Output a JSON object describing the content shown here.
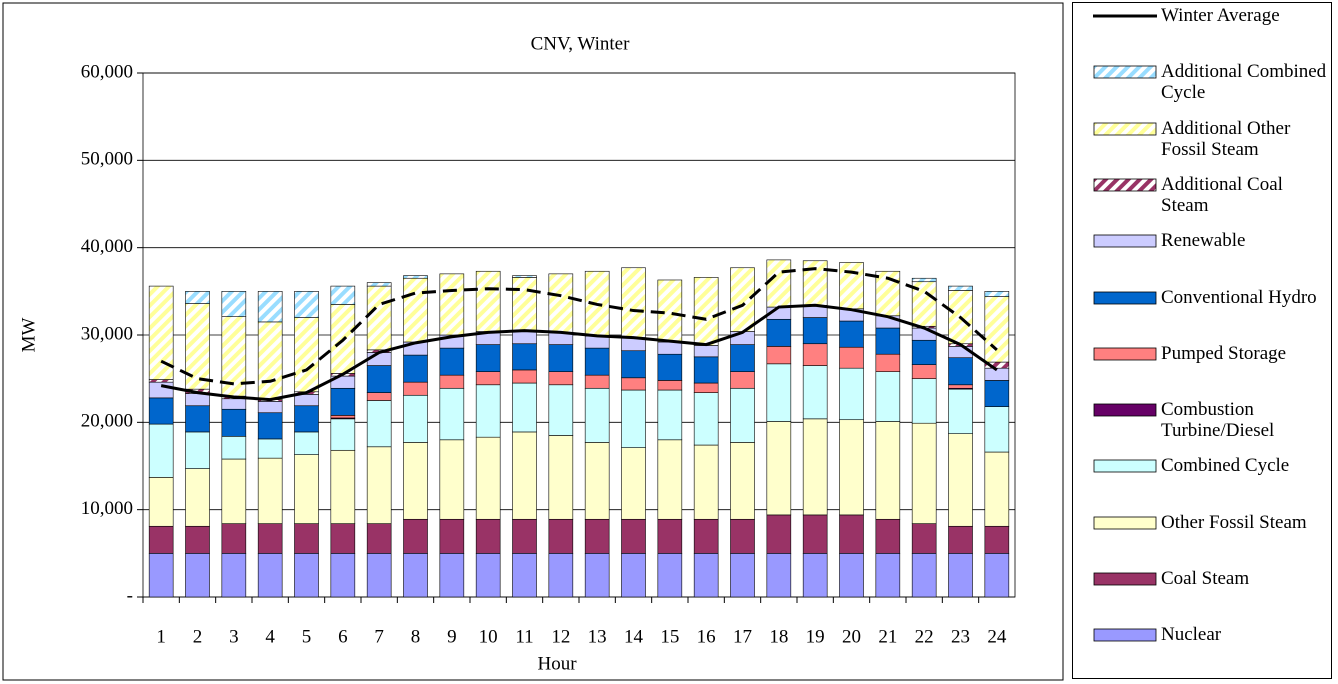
{
  "chart_data": {
    "type": "bar",
    "stacked": true,
    "title": "CNV, Winter",
    "x_label": "Hour",
    "y_label": "MW",
    "categories": [
      "1",
      "2",
      "3",
      "4",
      "5",
      "6",
      "7",
      "8",
      "9",
      "10",
      "11",
      "12",
      "13",
      "14",
      "15",
      "16",
      "17",
      "18",
      "19",
      "20",
      "21",
      "22",
      "23",
      "24"
    ],
    "ylim": [
      0,
      60000
    ],
    "yticks": [
      {
        "value": 0,
        "label": "-"
      },
      {
        "value": 10000,
        "label": "10,000"
      },
      {
        "value": 20000,
        "label": "20,000"
      },
      {
        "value": 30000,
        "label": "30,000"
      },
      {
        "value": 40000,
        "label": "40,000"
      },
      {
        "value": 50000,
        "label": "50,000"
      },
      {
        "value": 60000,
        "label": "60,000"
      }
    ],
    "grid": true,
    "series": [
      {
        "name": "Nuclear",
        "color": "#9999ff",
        "values": [
          5000,
          5000,
          5000,
          5000,
          5000,
          5000,
          5000,
          5000,
          5000,
          5000,
          5000,
          5000,
          5000,
          5000,
          5000,
          5000,
          5000,
          5000,
          5000,
          5000,
          5000,
          5000,
          5000,
          5000
        ]
      },
      {
        "name": "Coal Steam",
        "color": "#993366",
        "values": [
          3100,
          3100,
          3400,
          3400,
          3400,
          3400,
          3400,
          3900,
          3900,
          3900,
          3900,
          3900,
          3900,
          3900,
          3900,
          3900,
          3900,
          4400,
          4400,
          4400,
          3900,
          3400,
          3100,
          3100
        ]
      },
      {
        "name": "Other Fossil Steam",
        "color": "#ffffcc",
        "values": [
          5600,
          6600,
          7400,
          7500,
          7900,
          8400,
          8800,
          8800,
          9100,
          9400,
          10000,
          9600,
          8800,
          8200,
          9100,
          8500,
          8800,
          10700,
          11000,
          10900,
          11200,
          11500,
          10600,
          8500
        ]
      },
      {
        "name": "Combined Cycle",
        "color": "#ccffff",
        "values": [
          6100,
          4200,
          2600,
          2200,
          2600,
          3600,
          5300,
          5400,
          5900,
          6000,
          5600,
          5800,
          6200,
          6600,
          5700,
          6000,
          6200,
          6600,
          6100,
          5900,
          5700,
          5100,
          5100,
          5200
        ]
      },
      {
        "name": "Combustion Turbine/Diesel",
        "color": "#660066",
        "values": [
          0,
          0,
          0,
          0,
          0,
          100,
          0,
          0,
          0,
          0,
          0,
          0,
          0,
          0,
          0,
          0,
          0,
          0,
          0,
          0,
          0,
          0,
          100,
          0
        ]
      },
      {
        "name": "Pumped Storage",
        "color": "#ff8080",
        "values": [
          0,
          0,
          0,
          0,
          0,
          300,
          900,
          1500,
          1500,
          1500,
          1500,
          1500,
          1500,
          1400,
          1100,
          1100,
          1900,
          2000,
          2500,
          2400,
          2000,
          1600,
          400,
          0
        ]
      },
      {
        "name": "Conventional Hydro",
        "color": "#0066cc",
        "values": [
          3000,
          3000,
          3100,
          3000,
          3000,
          3100,
          3100,
          3100,
          3100,
          3100,
          3000,
          3100,
          3100,
          3100,
          3000,
          3000,
          3100,
          3100,
          3000,
          3000,
          3000,
          2800,
          3100,
          3000
        ]
      },
      {
        "name": "Renewable",
        "color": "#ccccff",
        "values": [
          1800,
          1400,
          1200,
          1300,
          1300,
          1400,
          1500,
          1500,
          1500,
          1500,
          1500,
          1400,
          1400,
          1500,
          1400,
          1300,
          1500,
          1400,
          1400,
          1400,
          1400,
          1400,
          1300,
          1400
        ]
      },
      {
        "name": "Additional Coal Steam",
        "color": "#993366",
        "pattern": "hatch",
        "values": [
          300,
          500,
          300,
          200,
          300,
          300,
          300,
          0,
          0,
          0,
          0,
          0,
          0,
          0,
          0,
          0,
          0,
          0,
          0,
          0,
          0,
          200,
          300,
          700
        ]
      },
      {
        "name": "Additional Other Fossil Steam",
        "color": "#ffff99",
        "pattern": "hatch",
        "values": [
          10700,
          9800,
          9100,
          8900,
          8500,
          7900,
          7300,
          7300,
          7000,
          6900,
          6100,
          6700,
          7400,
          8000,
          7100,
          7800,
          7300,
          5400,
          5100,
          5300,
          5100,
          5100,
          6100,
          7500
        ]
      },
      {
        "name": "Additional Combined Cycle",
        "color": "#99ddff",
        "pattern": "hatch",
        "values": [
          0,
          1400,
          2900,
          3500,
          3000,
          2100,
          400,
          300,
          0,
          0,
          200,
          0,
          0,
          0,
          0,
          0,
          0,
          0,
          0,
          0,
          0,
          400,
          500,
          600
        ]
      },
      {
        "type": "line",
        "dashed": true,
        "color": "#000000",
        "values": [
          27000,
          25000,
          24400,
          24700,
          26000,
          29400,
          33500,
          34800,
          35100,
          35300,
          35200,
          34500,
          33500,
          32800,
          32500,
          31800,
          33400,
          37200,
          37600,
          37200,
          36500,
          35000,
          32000,
          28300
        ]
      },
      {
        "type": "line",
        "name": "Winter Average",
        "color": "#000000",
        "values": [
          24200,
          23400,
          22900,
          22600,
          23400,
          25500,
          28000,
          29100,
          29800,
          30300,
          30500,
          30300,
          29900,
          29700,
          29300,
          28900,
          30300,
          33200,
          33400,
          32900,
          32100,
          30800,
          28900,
          26000
        ]
      }
    ]
  }
}
